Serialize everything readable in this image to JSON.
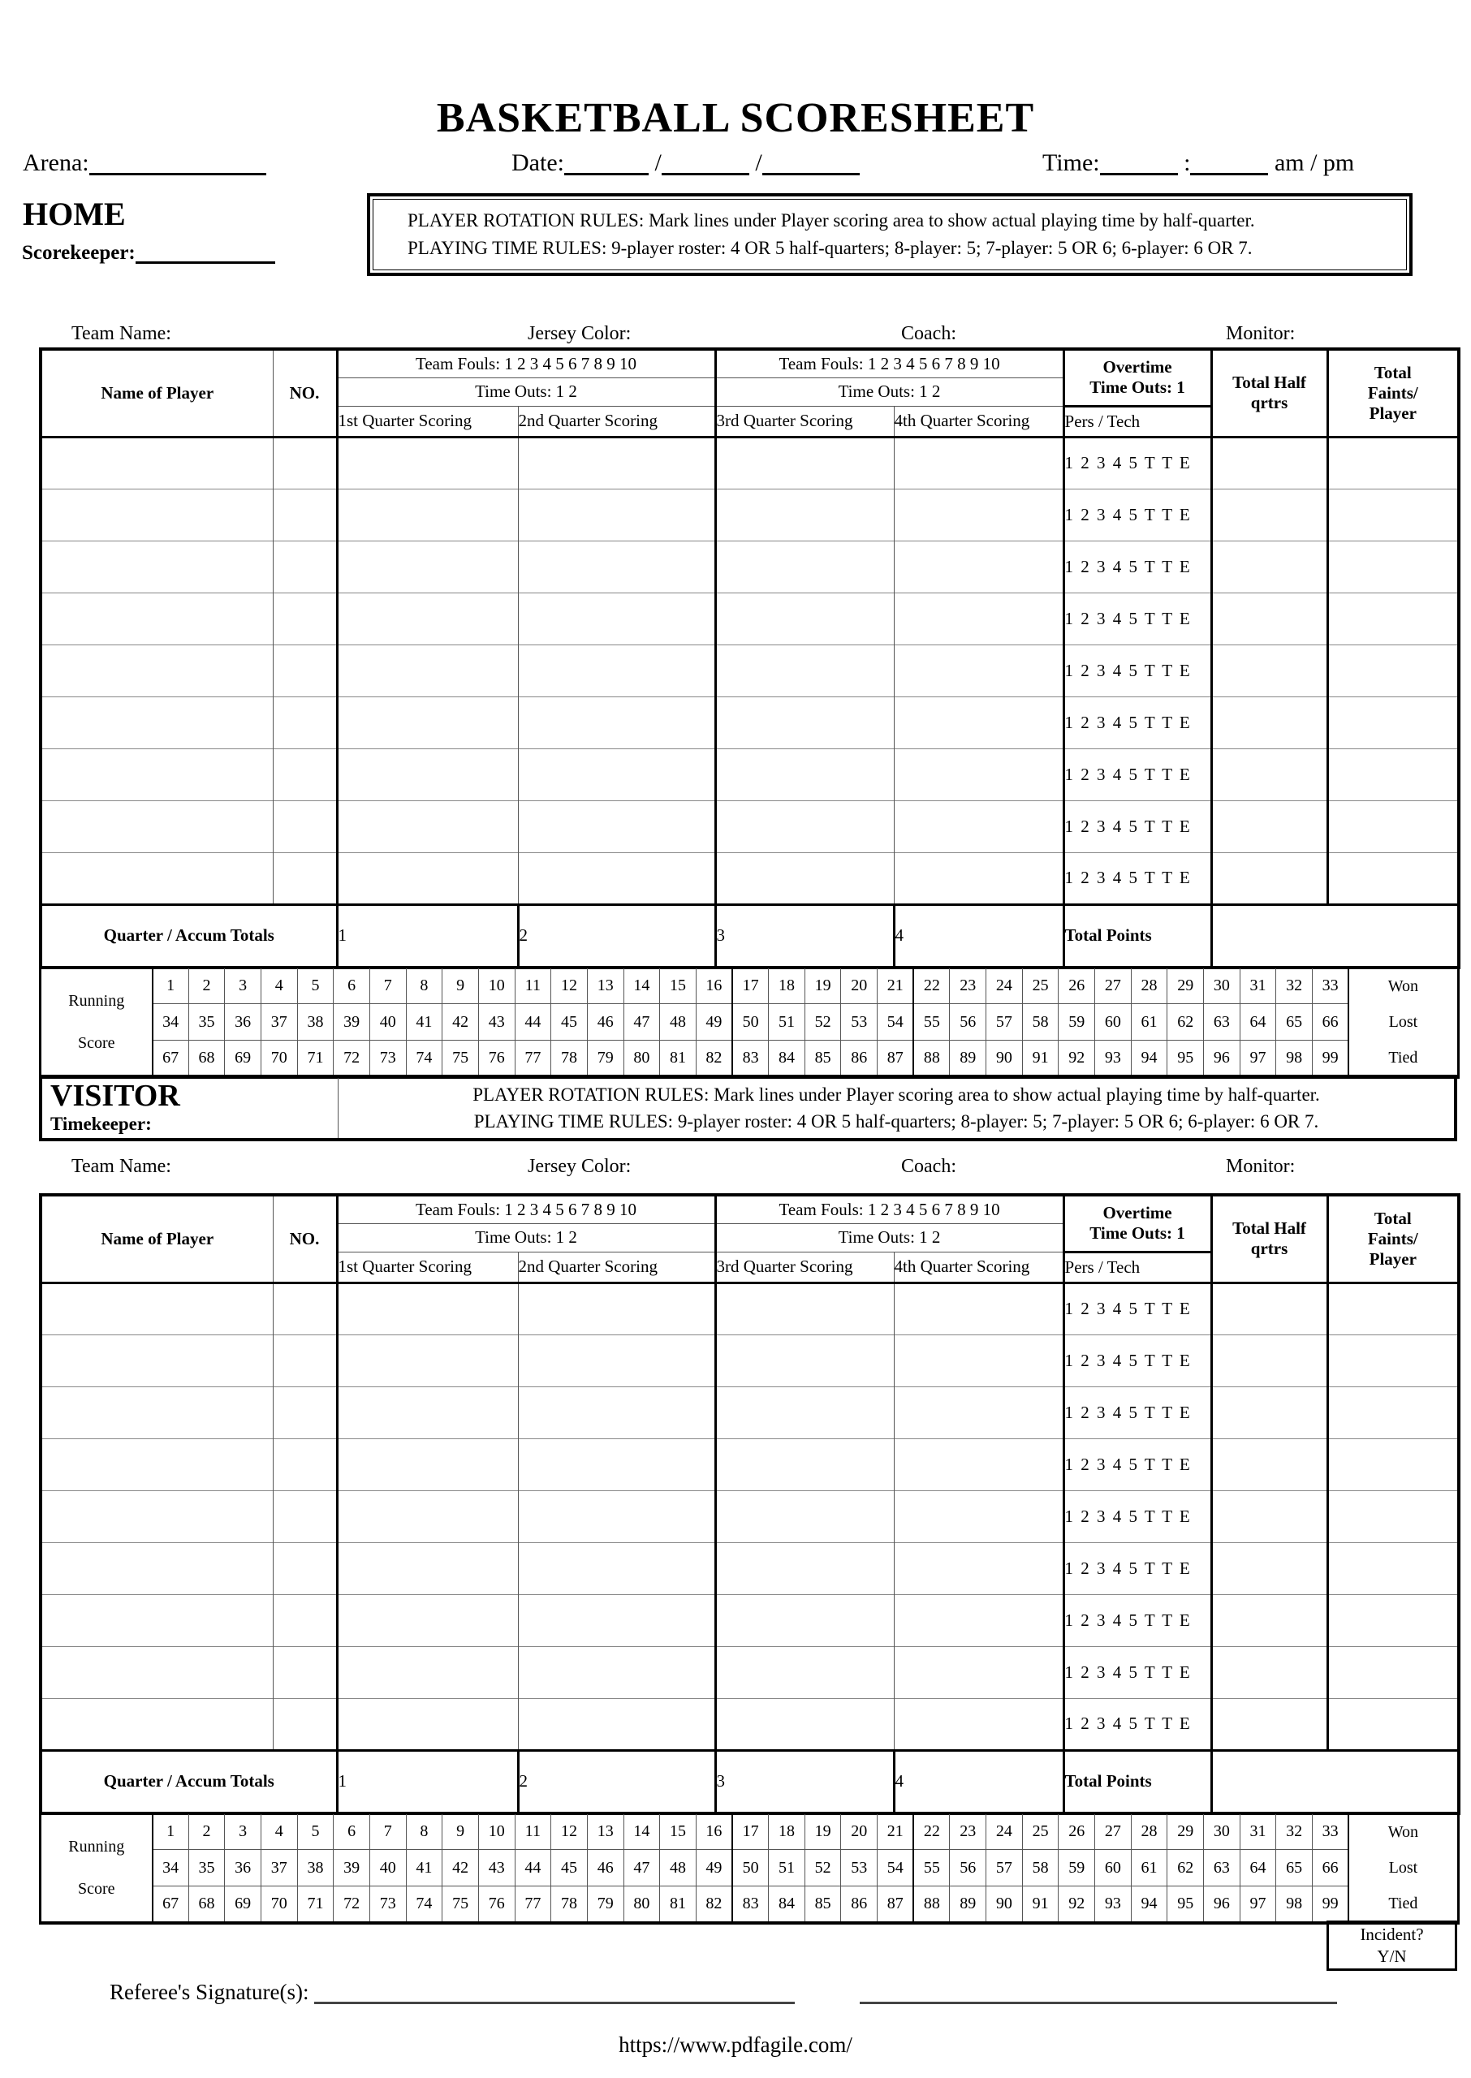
{
  "title": "BASKETBALL SCORESHEET",
  "info": {
    "arena_label": "Arena:",
    "date_label": "Date:",
    "date_separator": "/",
    "time_label": "Time:",
    "time_separator": ":",
    "ampm_label": "am / pm"
  },
  "home": {
    "label": "HOME",
    "role_label": "Scorekeeper:"
  },
  "visitor": {
    "label": "VISITOR",
    "role_label": "Timekeeper:"
  },
  "rules": {
    "line1": "PLAYER ROTATION RULES: Mark lines under Player scoring area to show actual playing time by half-quarter.",
    "line2": "PLAYING TIME RULES: 9-player roster:  4 OR 5 half-quarters;  8-player: 5;  7-player: 5 OR 6;  6-player: 6 OR 7."
  },
  "team_info_labels": [
    "Team Name:",
    "Jersey Color:",
    "Coach:",
    "Monitor:"
  ],
  "score_table": {
    "headers": {
      "name_of_player": "Name of Player",
      "number": "NO.",
      "team_fouls": "Team Fouls: 1 2 3 4 5 6 7 8 9 10",
      "time_outs": "Time Outs: 1 2",
      "q1": "1st Quarter Scoring",
      "q2": "2nd Quarter Scoring",
      "q3": "3rd Quarter Scoring",
      "q4": "4th Quarter Scoring",
      "overtime_line1": "Overtime",
      "overtime_line2": "Time Outs: 1",
      "pers_tech": "Pers / Tech",
      "total_half_lines": [
        "Total Half",
        "qrtrs"
      ],
      "total_faints_lines": [
        "Total",
        "Faints/",
        "Player"
      ]
    },
    "player_rows": 9,
    "player_fouls_scale": "1 2 3 4 5 T T E",
    "totals": {
      "label": "Quarter / Accum Totals",
      "quarters": [
        "1",
        "2",
        "3",
        "4"
      ],
      "total_points_label": "Total Points"
    }
  },
  "running_score": {
    "label_lines": [
      "Running",
      "Score"
    ],
    "rows": [
      [
        1,
        2,
        3,
        4,
        5,
        6,
        7,
        8,
        9,
        10,
        11,
        12,
        13,
        14,
        15,
        16,
        17,
        18,
        19,
        20,
        21,
        22,
        23,
        24,
        25,
        26,
        27,
        28,
        29,
        30,
        31,
        32,
        33
      ],
      [
        34,
        35,
        36,
        37,
        38,
        39,
        40,
        41,
        42,
        43,
        44,
        45,
        46,
        47,
        48,
        49,
        50,
        51,
        52,
        53,
        54,
        55,
        56,
        57,
        58,
        59,
        60,
        61,
        62,
        63,
        64,
        65,
        66
      ],
      [
        67,
        68,
        69,
        70,
        71,
        72,
        73,
        74,
        75,
        76,
        77,
        78,
        79,
        80,
        81,
        82,
        83,
        84,
        85,
        86,
        87,
        88,
        89,
        90,
        91,
        92,
        93,
        94,
        95,
        96,
        97,
        98,
        99
      ]
    ],
    "results": [
      "Won",
      "Lost",
      "Tied"
    ]
  },
  "incident": {
    "line1": "Incident?",
    "line2": "Y/N"
  },
  "signature_label": "Referee's Signature(s):",
  "footer_url": "https://www.pdfagile.com/"
}
